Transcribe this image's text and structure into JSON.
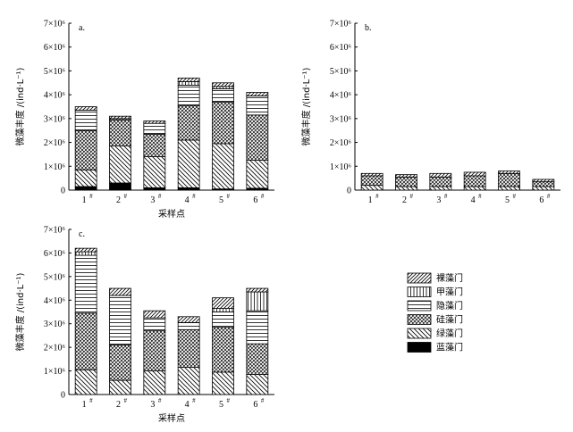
{
  "legend_order": [
    "裸藻门",
    "甲藻门",
    "隐藻门",
    "硅藻门",
    "绿藻门",
    "蓝藻门"
  ],
  "chart_data": [
    {
      "type": "bar",
      "stacked": true,
      "panel_label": "a.",
      "categories": [
        "1",
        "2",
        "3",
        "4",
        "5",
        "6"
      ],
      "category_superscript": "#",
      "xlabel": "采样点",
      "ylabel": "微藻丰度 /(ind·L⁻¹)",
      "ylim": [
        0,
        7000000
      ],
      "ytick_labels": [
        "0",
        "1×10⁶",
        "2×10⁶",
        "3×10⁶",
        "4×10⁶",
        "5×10⁶",
        "6×10⁶",
        "7×10⁶"
      ],
      "show_xlabel": true,
      "series": [
        {
          "name": "蓝藻门",
          "values": [
            150000,
            300000,
            100000,
            100000,
            50000,
            80000
          ]
        },
        {
          "name": "绿藻门",
          "values": [
            700000,
            1550000,
            1300000,
            2000000,
            1900000,
            1170000
          ]
        },
        {
          "name": "硅藻门",
          "values": [
            1650000,
            1100000,
            950000,
            1450000,
            1750000,
            1900000
          ]
        },
        {
          "name": "隐藻门",
          "values": [
            850000,
            0,
            450000,
            850000,
            550000,
            800000
          ]
        },
        {
          "name": "甲藻门",
          "values": [
            0,
            50000,
            0,
            150000,
            100000,
            0
          ]
        },
        {
          "name": "裸藻门",
          "values": [
            150000,
            100000,
            100000,
            150000,
            150000,
            150000
          ]
        }
      ]
    },
    {
      "type": "bar",
      "stacked": true,
      "panel_label": "b.",
      "categories": [
        "1",
        "2",
        "3",
        "4",
        "5",
        "6"
      ],
      "category_superscript": "#",
      "xlabel": "",
      "ylabel": "微藻丰度 /(ind·L⁻¹)",
      "ylim": [
        0,
        7000000
      ],
      "ytick_labels": [
        "0",
        "1×10⁶",
        "2×10⁶",
        "3×10⁶",
        "4×10⁶",
        "5×10⁶",
        "6×10⁶",
        "7×10⁶"
      ],
      "show_xlabel": false,
      "series": [
        {
          "name": "蓝藻门",
          "values": [
            0,
            0,
            0,
            0,
            0,
            0
          ]
        },
        {
          "name": "绿藻门",
          "values": [
            200000,
            150000,
            150000,
            150000,
            150000,
            150000
          ]
        },
        {
          "name": "硅藻门",
          "values": [
            400000,
            400000,
            400000,
            450000,
            550000,
            200000
          ]
        },
        {
          "name": "隐藻门",
          "values": [
            0,
            0,
            0,
            0,
            0,
            0
          ]
        },
        {
          "name": "甲藻门",
          "values": [
            0,
            0,
            0,
            0,
            0,
            0
          ]
        },
        {
          "name": "裸藻门",
          "values": [
            100000,
            100000,
            150000,
            150000,
            100000,
            100000
          ]
        }
      ]
    },
    {
      "type": "bar",
      "stacked": true,
      "panel_label": "c.",
      "categories": [
        "1",
        "2",
        "3",
        "4",
        "5",
        "6"
      ],
      "category_superscript": "#",
      "xlabel": "采样点",
      "ylabel": "微藻丰度 /(ind·L⁻¹)",
      "ylim": [
        0,
        7000000
      ],
      "ytick_labels": [
        "0",
        "1×10⁶",
        "2×10⁶",
        "3×10⁶",
        "4×10⁶",
        "5×10⁶",
        "6×10⁶",
        "7×10⁶"
      ],
      "show_xlabel": true,
      "series": [
        {
          "name": "蓝藻门",
          "values": [
            0,
            0,
            0,
            0,
            0,
            0
          ]
        },
        {
          "name": "绿藻门",
          "values": [
            1050000,
            600000,
            1000000,
            1150000,
            950000,
            850000
          ]
        },
        {
          "name": "硅藻门",
          "values": [
            2400000,
            1500000,
            1700000,
            1600000,
            1900000,
            1300000
          ]
        },
        {
          "name": "隐藻门",
          "values": [
            2450000,
            2100000,
            550000,
            300000,
            650000,
            1400000
          ]
        },
        {
          "name": "甲藻门",
          "values": [
            150000,
            0,
            0,
            0,
            150000,
            800000
          ]
        },
        {
          "name": "裸藻门",
          "values": [
            150000,
            300000,
            300000,
            250000,
            450000,
            150000
          ]
        }
      ]
    }
  ]
}
